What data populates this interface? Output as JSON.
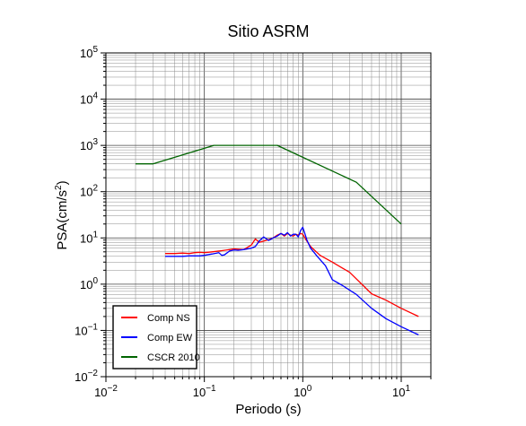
{
  "chart_data": {
    "type": "line",
    "title": "Sitio ASRM",
    "xlabel": "Periodo (s)",
    "ylabel": "PSA(cm/s",
    "ylabel_sup": "2",
    "ylabel_close": ")",
    "x_scale": "log",
    "y_scale": "log",
    "xlim": [
      0.01,
      20
    ],
    "ylim": [
      0.01,
      100000
    ],
    "grid": true,
    "legend_position": "bottom-left",
    "x_ticks": [
      {
        "base": "10",
        "exp": "−2"
      },
      {
        "base": "10",
        "exp": "−1"
      },
      {
        "base": "10",
        "exp": "0"
      },
      {
        "base": "10",
        "exp": "1"
      }
    ],
    "y_ticks": [
      {
        "base": "10",
        "exp": "−2"
      },
      {
        "base": "10",
        "exp": "−1"
      },
      {
        "base": "10",
        "exp": "0"
      },
      {
        "base": "10",
        "exp": "1"
      },
      {
        "base": "10",
        "exp": "2"
      },
      {
        "base": "10",
        "exp": "3"
      },
      {
        "base": "10",
        "exp": "4"
      },
      {
        "base": "10",
        "exp": "5"
      }
    ],
    "series": [
      {
        "name": "Comp NS",
        "color": "#ff0000",
        "x": [
          0.04,
          0.05,
          0.06,
          0.07,
          0.08,
          0.09,
          0.1,
          0.12,
          0.15,
          0.18,
          0.2,
          0.25,
          0.3,
          0.33,
          0.36,
          0.4,
          0.45,
          0.5,
          0.55,
          0.6,
          0.65,
          0.7,
          0.75,
          0.8,
          0.85,
          0.9,
          0.95,
          1.0,
          1.1,
          1.2,
          1.5,
          2.0,
          3.0,
          5.0,
          7.0,
          10.0,
          15.0
        ],
        "y": [
          4.6,
          4.6,
          4.7,
          4.6,
          4.8,
          4.9,
          4.8,
          5.0,
          5.3,
          5.6,
          5.8,
          5.6,
          7.0,
          9.5,
          8.0,
          8.5,
          9.2,
          10.0,
          11.5,
          12.5,
          11.0,
          12.5,
          11.5,
          11.0,
          12.0,
          11.5,
          12.5,
          12.0,
          8.5,
          6.5,
          4.2,
          3.0,
          1.8,
          0.62,
          0.45,
          0.3,
          0.2
        ]
      },
      {
        "name": "Comp EW",
        "color": "#0000ff",
        "x": [
          0.04,
          0.05,
          0.06,
          0.07,
          0.08,
          0.09,
          0.1,
          0.12,
          0.14,
          0.15,
          0.16,
          0.18,
          0.2,
          0.22,
          0.25,
          0.3,
          0.33,
          0.36,
          0.4,
          0.45,
          0.5,
          0.55,
          0.6,
          0.65,
          0.7,
          0.75,
          0.8,
          0.85,
          0.9,
          0.95,
          1.0,
          1.05,
          1.1,
          1.2,
          1.4,
          1.7,
          2.0,
          2.5,
          3.5,
          5.0,
          7.0,
          10.0,
          15.0
        ],
        "y": [
          4.0,
          4.0,
          4.0,
          4.1,
          4.1,
          4.1,
          4.2,
          4.5,
          4.8,
          4.2,
          4.3,
          5.2,
          5.5,
          5.4,
          5.6,
          6.0,
          6.5,
          8.5,
          10.5,
          8.8,
          10.0,
          11.0,
          12.5,
          11.5,
          13.0,
          11.0,
          12.0,
          12.0,
          10.5,
          14.5,
          17.0,
          12.5,
          9.0,
          6.0,
          4.0,
          2.5,
          1.25,
          0.95,
          0.6,
          0.3,
          0.18,
          0.12,
          0.08
        ]
      },
      {
        "name": "CSCR 2010",
        "color": "#006400",
        "x": [
          0.02,
          0.03,
          0.125,
          0.55,
          3.5,
          10.0
        ],
        "y": [
          400,
          400,
          1000,
          1000,
          160,
          20
        ]
      }
    ]
  }
}
